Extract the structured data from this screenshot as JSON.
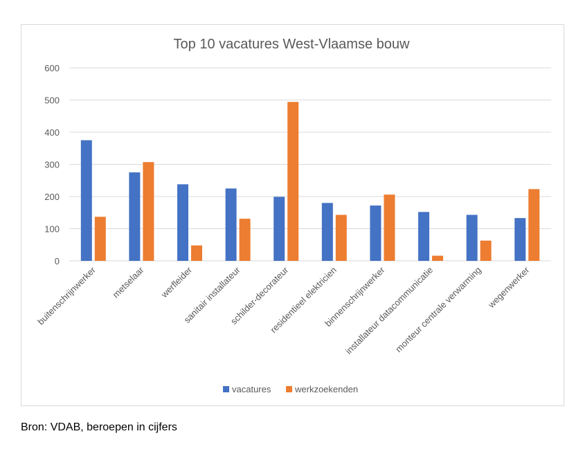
{
  "chart_data": {
    "type": "bar",
    "title": "Top 10 vacatures West-Vlaamse bouw",
    "categories": [
      "buitenschrijnwerker",
      "metselaar",
      "werfleider",
      "sanitair installateur",
      "schilder-decorateur",
      "residentieel elektricien",
      "binnenschrijnwerker",
      "installateur datacommunicatie",
      "monteur centrale verwarming",
      "wegenwerker"
    ],
    "series": [
      {
        "name": "vacatures",
        "color": "#4472c4",
        "values": [
          375,
          275,
          238,
          225,
          199,
          180,
          172,
          152,
          143,
          133
        ]
      },
      {
        "name": "werkzoekenden",
        "color": "#ed7d31",
        "values": [
          137,
          307,
          48,
          131,
          494,
          143,
          206,
          16,
          63,
          223
        ]
      }
    ],
    "ylim": [
      0,
      600
    ],
    "yticks": [
      "0",
      "100",
      "200",
      "300",
      "400",
      "500",
      "600"
    ],
    "grid": true,
    "legend": "bottom"
  },
  "source": "Bron: VDAB, beroepen in cijfers"
}
